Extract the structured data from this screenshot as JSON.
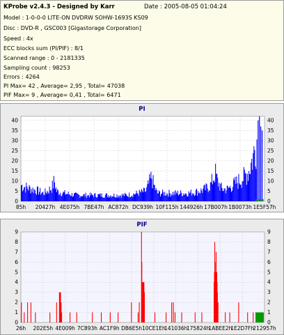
{
  "info": {
    "title": "KProbe v2.4.3 - Designed by Karr",
    "date": "Date : 2005-08-05 01:04:24",
    "lines": [
      "Model : 1-0-0-0 LITE-ON DVDRW SOHW-1693S KS09",
      "Disc : DVD-R , GSC003 [Gigastorage Corporation]",
      "Speed : 4x",
      "ECC blocks sum (PI/PIF) : 8/1",
      "Scanned range : 0 - 2181335",
      "Sampling count : 98253",
      "Errors : 4264",
      "PI Max= 42 , Average= 2,95 , Total= 47038",
      "PIF Max= 9 , Average= 0,41 , Total= 6471"
    ]
  },
  "colors": {
    "pi_bar": "#0000ff",
    "pif_bar": "#ff0000",
    "end_marker": "#009900",
    "plot_bg_pi": "#ffffff",
    "plot_bg_pif": "#f4f4ff",
    "title": "#00008b"
  },
  "chart_data": [
    {
      "type": "bar",
      "title": "PI",
      "ylim": [
        0,
        42
      ],
      "yticks": [
        0,
        5,
        10,
        15,
        20,
        25,
        30,
        35,
        40
      ],
      "grid": true,
      "xtick_labels": [
        "85h",
        "20427h",
        "4E075h",
        "7BE47h",
        "AC872h",
        "DC939h",
        "10F115h",
        "144926h",
        "17B007h",
        "1B0073h",
        "1E5F57h"
      ],
      "x_range": [
        0,
        2181335
      ],
      "profile_points": [
        [
          0,
          8
        ],
        [
          40000,
          7
        ],
        [
          100000,
          6
        ],
        [
          160000,
          5
        ],
        [
          200000,
          4
        ],
        [
          240000,
          5
        ],
        [
          280000,
          7
        ],
        [
          300000,
          10
        ],
        [
          320000,
          5
        ],
        [
          380000,
          4
        ],
        [
          500000,
          3
        ],
        [
          650000,
          3
        ],
        [
          800000,
          3
        ],
        [
          950000,
          3
        ],
        [
          1050000,
          4
        ],
        [
          1120000,
          5
        ],
        [
          1150000,
          9
        ],
        [
          1170000,
          12
        ],
        [
          1190000,
          8
        ],
        [
          1220000,
          4
        ],
        [
          1300000,
          4
        ],
        [
          1400000,
          4
        ],
        [
          1500000,
          4
        ],
        [
          1600000,
          5
        ],
        [
          1650000,
          6
        ],
        [
          1700000,
          8
        ],
        [
          1720000,
          11
        ],
        [
          1740000,
          14
        ],
        [
          1760000,
          10
        ],
        [
          1800000,
          6
        ],
        [
          1850000,
          6
        ],
        [
          1900000,
          8
        ],
        [
          1950000,
          10
        ],
        [
          2000000,
          12
        ],
        [
          2040000,
          15
        ],
        [
          2080000,
          22
        ],
        [
          2110000,
          30
        ],
        [
          2130000,
          37
        ],
        [
          2150000,
          20
        ],
        [
          2181335,
          8
        ]
      ],
      "peaks": [
        [
          2124000,
          40
        ],
        [
          2136000,
          42
        ],
        [
          2148000,
          37
        ],
        [
          2160000,
          35
        ]
      ]
    },
    {
      "type": "bar",
      "title": "PIF",
      "ylim": [
        0,
        9
      ],
      "yticks": [
        0,
        1,
        2,
        3,
        4,
        5,
        6,
        7,
        8,
        9
      ],
      "grid": true,
      "xtick_labels": [
        "26h",
        "202E5h",
        "4E009h",
        "7C893h",
        "AC1F9h",
        "DB6E5h",
        "10CE1Eh",
        "141036h",
        "175824h",
        "1ABEE2h",
        "1E2D7Fh",
        "212957h"
      ],
      "x_range": [
        0,
        2181335
      ],
      "bars": [
        [
          5000,
          2
        ],
        [
          30000,
          1
        ],
        [
          60000,
          2
        ],
        [
          90000,
          2
        ],
        [
          130000,
          1
        ],
        [
          260000,
          1
        ],
        [
          320000,
          2
        ],
        [
          345000,
          3
        ],
        [
          350000,
          3
        ],
        [
          355000,
          3
        ],
        [
          360000,
          2
        ],
        [
          365000,
          1
        ],
        [
          440000,
          1
        ],
        [
          500000,
          1
        ],
        [
          640000,
          1
        ],
        [
          720000,
          1
        ],
        [
          800000,
          1
        ],
        [
          870000,
          1
        ],
        [
          990000,
          2
        ],
        [
          1050000,
          1
        ],
        [
          1060000,
          2
        ],
        [
          1080000,
          9
        ],
        [
          1083000,
          6
        ],
        [
          1086000,
          4
        ],
        [
          1090000,
          4
        ],
        [
          1094000,
          4
        ],
        [
          1098000,
          4
        ],
        [
          1102000,
          4
        ],
        [
          1106000,
          3
        ],
        [
          1200000,
          1
        ],
        [
          1300000,
          1
        ],
        [
          1350000,
          2
        ],
        [
          1365000,
          2
        ],
        [
          1380000,
          1
        ],
        [
          1440000,
          1
        ],
        [
          1560000,
          1
        ],
        [
          1620000,
          1
        ],
        [
          1730000,
          4
        ],
        [
          1733000,
          5
        ],
        [
          1736000,
          8
        ],
        [
          1739000,
          6
        ],
        [
          1742000,
          5
        ],
        [
          1745000,
          5
        ],
        [
          1748000,
          7
        ],
        [
          1751000,
          5
        ],
        [
          1754000,
          5
        ],
        [
          1757000,
          4
        ],
        [
          1760000,
          3
        ],
        [
          1765000,
          2
        ],
        [
          1830000,
          1
        ],
        [
          1870000,
          1
        ],
        [
          1950000,
          2
        ],
        [
          2030000,
          1
        ],
        [
          2080000,
          1
        ],
        [
          2120000,
          1
        ]
      ]
    }
  ]
}
